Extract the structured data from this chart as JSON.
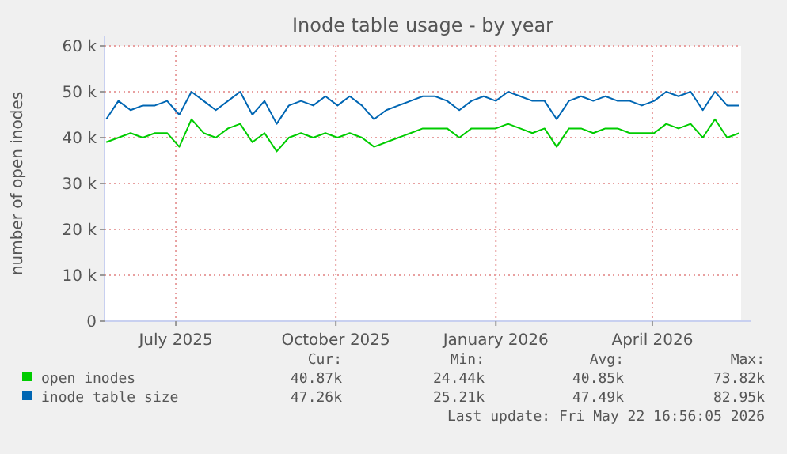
{
  "chart_data": {
    "type": "line",
    "title": "Inode table usage - by year",
    "ylabel": "number of open inodes",
    "x": [
      "2025-05-22",
      "2025-05-29",
      "2025-06-05",
      "2025-06-12",
      "2025-06-19",
      "2025-06-26",
      "2025-07-03",
      "2025-07-10",
      "2025-07-17",
      "2025-07-24",
      "2025-07-31",
      "2025-08-07",
      "2025-08-14",
      "2025-08-21",
      "2025-08-28",
      "2025-09-04",
      "2025-09-11",
      "2025-09-18",
      "2025-09-25",
      "2025-10-02",
      "2025-10-09",
      "2025-10-16",
      "2025-10-23",
      "2025-10-30",
      "2025-11-06",
      "2025-11-13",
      "2025-11-20",
      "2025-11-27",
      "2025-12-04",
      "2025-12-11",
      "2025-12-18",
      "2025-12-25",
      "2026-01-01",
      "2026-01-08",
      "2026-01-15",
      "2026-01-22",
      "2026-01-29",
      "2026-02-05",
      "2026-02-12",
      "2026-02-19",
      "2026-02-26",
      "2026-03-05",
      "2026-03-12",
      "2026-03-19",
      "2026-03-26",
      "2026-04-02",
      "2026-04-09",
      "2026-04-16",
      "2026-04-23",
      "2026-04-30",
      "2026-05-07",
      "2026-05-14",
      "2026-05-21"
    ],
    "series": [
      {
        "name": "open inodes",
        "color": "#00cc00",
        "values": [
          39000,
          40000,
          41000,
          40000,
          41000,
          41000,
          38000,
          44000,
          41000,
          40000,
          42000,
          43000,
          39000,
          41000,
          37000,
          40000,
          41000,
          40000,
          41000,
          40000,
          41000,
          40000,
          38000,
          39000,
          40000,
          41000,
          42000,
          42000,
          42000,
          40000,
          42000,
          42000,
          42000,
          43000,
          42000,
          41000,
          42000,
          38000,
          42000,
          42000,
          41000,
          42000,
          42000,
          41000,
          41000,
          41000,
          43000,
          42000,
          43000,
          40000,
          44000,
          40000,
          41000
        ]
      },
      {
        "name": "inode table size",
        "color": "#0066b3",
        "values": [
          44000,
          48000,
          46000,
          47000,
          47000,
          48000,
          45000,
          50000,
          48000,
          46000,
          48000,
          50000,
          45000,
          48000,
          43000,
          47000,
          48000,
          47000,
          49000,
          47000,
          49000,
          47000,
          44000,
          46000,
          47000,
          48000,
          49000,
          49000,
          48000,
          46000,
          48000,
          49000,
          48000,
          50000,
          49000,
          48000,
          48000,
          44000,
          48000,
          49000,
          48000,
          49000,
          48000,
          48000,
          47000,
          48000,
          50000,
          49000,
          50000,
          46000,
          50000,
          47000,
          47000
        ]
      }
    ],
    "xlim": [
      "2025-05-21",
      "2026-05-22"
    ],
    "xticks": [
      {
        "value": "2025-07-01",
        "label": "July 2025"
      },
      {
        "value": "2025-10-01",
        "label": "October 2025"
      },
      {
        "value": "2026-01-01",
        "label": "January 2026"
      },
      {
        "value": "2026-04-01",
        "label": "April 2026"
      }
    ],
    "ylim": [
      0,
      60000
    ],
    "yticks": [
      {
        "value": 0,
        "label": "0"
      },
      {
        "value": 10000,
        "label": "10 k"
      },
      {
        "value": 20000,
        "label": "20 k"
      },
      {
        "value": 30000,
        "label": "30 k"
      },
      {
        "value": 40000,
        "label": "40 k"
      },
      {
        "value": 50000,
        "label": "50 k"
      },
      {
        "value": 60000,
        "label": "60 k"
      }
    ],
    "grid": true,
    "legend": "bottom",
    "annotations": [
      "Cur:",
      "Min:",
      "Avg:",
      "Max:",
      "40.87k",
      "24.44k",
      "40.85k",
      "73.82k",
      "47.26k",
      "25.21k",
      "47.49k",
      "82.95k",
      "Last update: Fri May 22 16:56:05 2026"
    ]
  }
}
